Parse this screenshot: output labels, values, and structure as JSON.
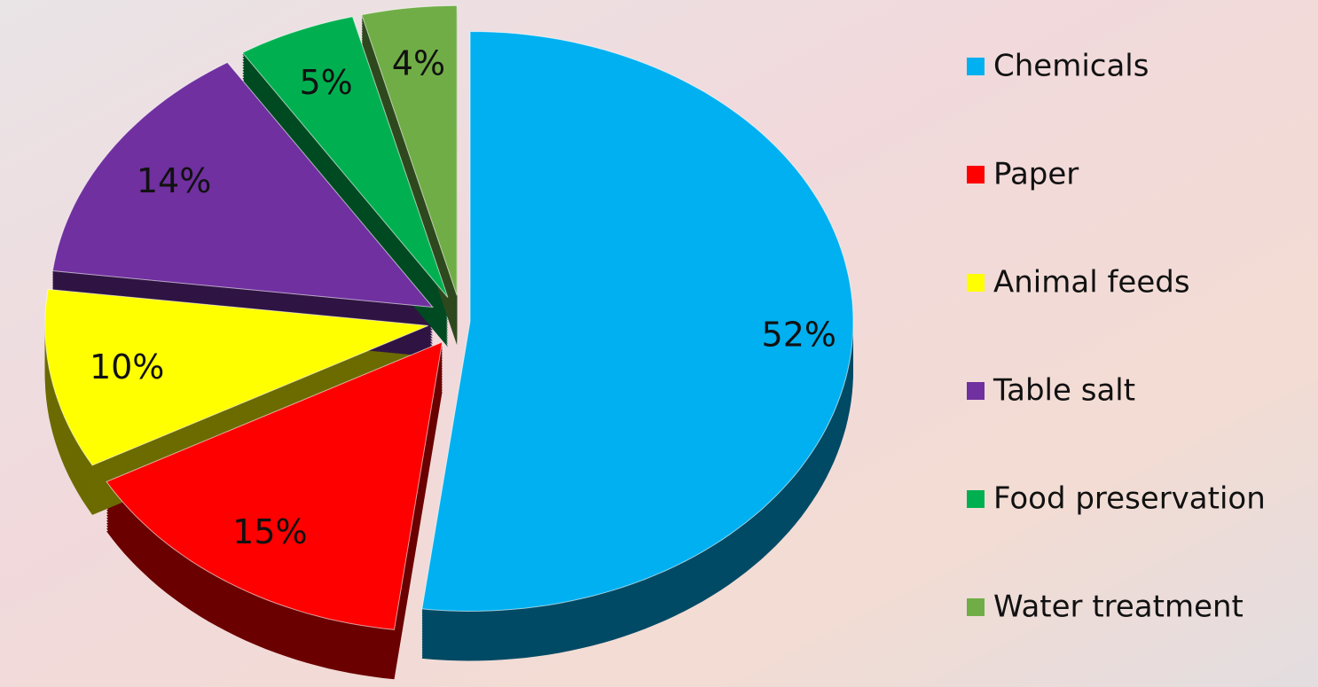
{
  "chart_data": {
    "type": "pie",
    "categories": [
      "Chemicals",
      "Paper",
      "Animal feeds",
      "Table salt",
      "Food preservation",
      "Water treatment"
    ],
    "values": [
      52,
      15,
      10,
      14,
      5,
      4
    ],
    "value_labels": [
      "52%",
      "15%",
      "10%",
      "14%",
      "5%",
      "4%"
    ],
    "colors": [
      "#00b0f0",
      "#ff0000",
      "#ffff00",
      "#7030a0",
      "#00b050",
      "#70ad47"
    ],
    "legend": "right"
  }
}
